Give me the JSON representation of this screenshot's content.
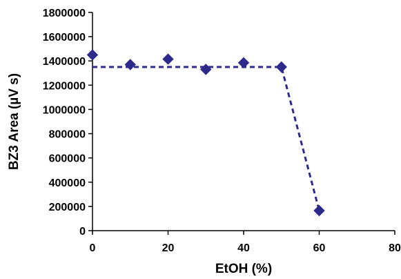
{
  "chart_data": {
    "type": "scatter",
    "xlabel": "EtOH (%)",
    "ylabel": "BZ3 Area (µV s)",
    "xlim": [
      0,
      80
    ],
    "ylim": [
      0,
      1800000
    ],
    "x_ticks": [
      0,
      20,
      40,
      60,
      80
    ],
    "y_ticks": [
      0,
      200000,
      400000,
      600000,
      800000,
      1000000,
      1200000,
      1400000,
      1600000,
      1800000
    ],
    "grid": false,
    "legend": "none",
    "series": [
      {
        "marker": "diamond",
        "color": "#2E2A8C",
        "points": [
          {
            "x": 0,
            "y": 1450000
          },
          {
            "x": 10,
            "y": 1370000
          },
          {
            "x": 20,
            "y": 1415000
          },
          {
            "x": 30,
            "y": 1330000
          },
          {
            "x": 40,
            "y": 1385000
          },
          {
            "x": 50,
            "y": 1350000
          },
          {
            "x": 60,
            "y": 165000
          }
        ]
      }
    ],
    "trend_line": {
      "style": "dashed",
      "color": "#2E2A8C",
      "points": [
        {
          "x": 0,
          "y": 1350000
        },
        {
          "x": 50,
          "y": 1350000
        },
        {
          "x": 60,
          "y": 165000
        }
      ]
    }
  }
}
